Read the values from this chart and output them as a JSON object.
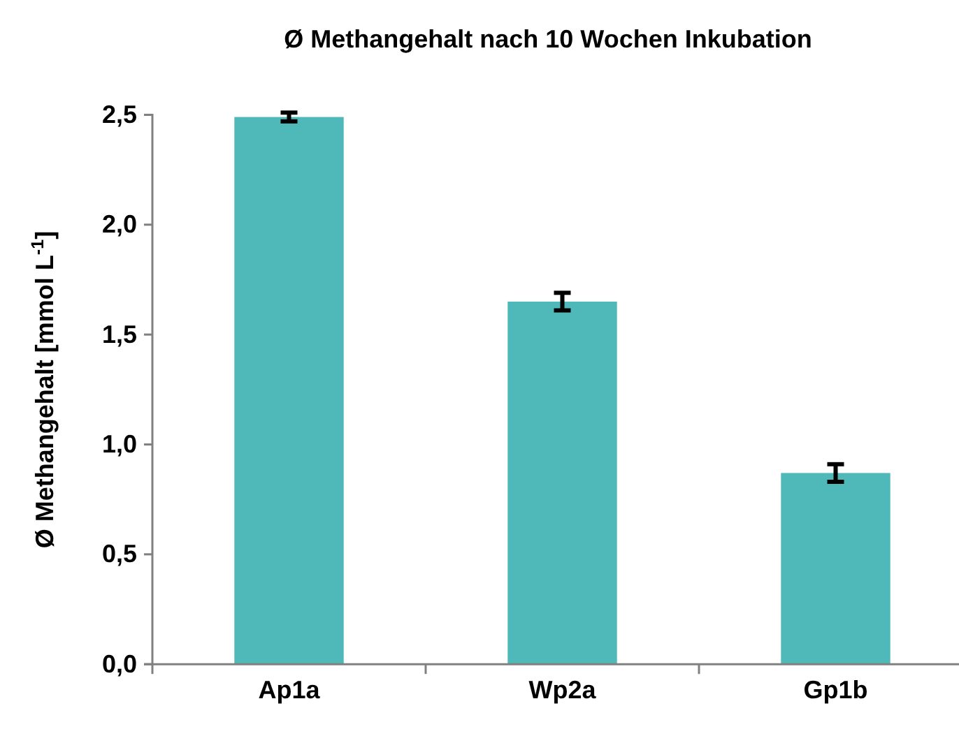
{
  "chart_data": {
    "type": "bar",
    "title": "Ø Methangehalt nach 10 Wochen Inkubation",
    "ylabel": "Ø Methangehalt [mmol L$^{-1}$]",
    "categories": [
      "Ap1a",
      "Wp2a",
      "Gp1b"
    ],
    "values": [
      2.49,
      1.65,
      0.87
    ],
    "errors": [
      0.02,
      0.04,
      0.04
    ],
    "color": "#4fb8b8",
    "ylim": [
      0,
      2.5
    ],
    "yticks": [
      {
        "value": 0,
        "label": "0,0"
      },
      {
        "value": 0.5,
        "label": "0,5"
      },
      {
        "value": 1,
        "label": "1,0"
      },
      {
        "value": 1.5,
        "label": "1,5"
      },
      {
        "value": 2,
        "label": "2,0"
      },
      {
        "value": 2.5,
        "label": "2,5"
      }
    ],
    "grid": false
  }
}
